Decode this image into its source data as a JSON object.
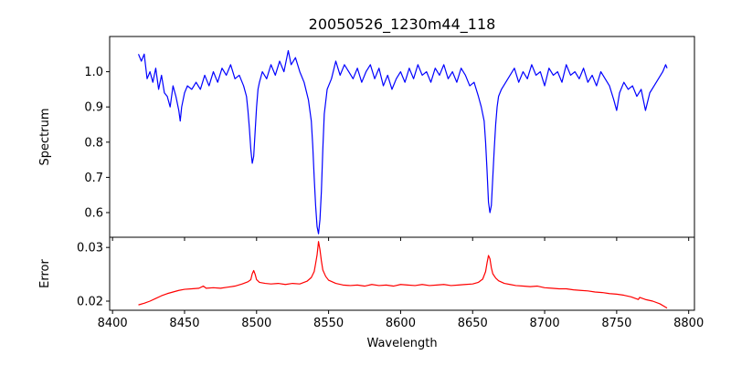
{
  "chart_data": [
    {
      "type": "line",
      "title": "20050526_1230m44_118",
      "xlabel": "",
      "ylabel": "Spectrum",
      "xlim": [
        8398,
        8804
      ],
      "ylim": [
        0.53,
        1.1
      ],
      "xticks": [
        8400,
        8450,
        8500,
        8550,
        8600,
        8650,
        8700,
        8750,
        8800
      ],
      "xtick_labels_visible": false,
      "yticks": [
        0.6,
        0.7,
        0.8,
        0.9,
        1.0
      ],
      "ytick_labels": [
        "0.6",
        "0.7",
        "0.8",
        "0.9",
        "1.0"
      ],
      "grid": false,
      "color": "#0000ff",
      "series": [
        {
          "x": [
            8418,
            8420,
            8422,
            8424,
            8426,
            8428,
            8430,
            8432,
            8434,
            8436,
            8438,
            8440,
            8442,
            8444,
            8446,
            8447,
            8448,
            8450,
            8452,
            8455,
            8458,
            8461,
            8464,
            8467,
            8470,
            8473,
            8476,
            8479,
            8482,
            8485,
            8488,
            8491,
            8493,
            8494,
            8495,
            8496,
            8497,
            8498,
            8499,
            8500,
            8501,
            8502,
            8504,
            8507,
            8510,
            8513,
            8516,
            8519,
            8522,
            8524,
            8527,
            8530,
            8533,
            8536,
            8538,
            8539,
            8540,
            8541,
            8542,
            8543,
            8544,
            8545,
            8546,
            8547,
            8549,
            8552,
            8555,
            8558,
            8561,
            8564,
            8567,
            8570,
            8573,
            8576,
            8579,
            8582,
            8585,
            8588,
            8591,
            8594,
            8597,
            8600,
            8603,
            8606,
            8609,
            8612,
            8615,
            8618,
            8621,
            8624,
            8627,
            8630,
            8633,
            8636,
            8639,
            8642,
            8645,
            8648,
            8651,
            8654,
            8656,
            8658,
            8659,
            8660,
            8661,
            8662,
            8663,
            8664,
            8665,
            8666,
            8667,
            8668,
            8670,
            8673,
            8676,
            8679,
            8682,
            8685,
            8688,
            8691,
            8694,
            8697,
            8700,
            8703,
            8706,
            8709,
            8712,
            8715,
            8718,
            8721,
            8724,
            8727,
            8730,
            8733,
            8736,
            8739,
            8742,
            8745,
            8748,
            8750,
            8752,
            8755,
            8758,
            8761,
            8764,
            8767,
            8770,
            8773,
            8776,
            8779,
            8782,
            8784,
            8785
          ],
          "y": [
            1.05,
            1.03,
            1.05,
            0.98,
            1.0,
            0.97,
            1.01,
            0.95,
            0.99,
            0.94,
            0.93,
            0.9,
            0.96,
            0.93,
            0.89,
            0.86,
            0.9,
            0.94,
            0.96,
            0.95,
            0.97,
            0.95,
            0.99,
            0.96,
            1.0,
            0.97,
            1.01,
            0.99,
            1.02,
            0.98,
            0.99,
            0.96,
            0.93,
            0.89,
            0.84,
            0.78,
            0.74,
            0.76,
            0.83,
            0.9,
            0.95,
            0.97,
            1.0,
            0.98,
            1.02,
            0.99,
            1.03,
            1.0,
            1.06,
            1.02,
            1.04,
            1.0,
            0.97,
            0.92,
            0.86,
            0.79,
            0.7,
            0.62,
            0.56,
            0.54,
            0.58,
            0.66,
            0.78,
            0.88,
            0.95,
            0.98,
            1.03,
            0.99,
            1.02,
            1.0,
            0.98,
            1.01,
            0.97,
            1.0,
            1.02,
            0.98,
            1.01,
            0.96,
            0.99,
            0.95,
            0.98,
            1.0,
            0.97,
            1.01,
            0.98,
            1.02,
            0.99,
            1.0,
            0.97,
            1.01,
            0.99,
            1.02,
            0.98,
            1.0,
            0.97,
            1.01,
            0.99,
            0.96,
            0.97,
            0.93,
            0.9,
            0.86,
            0.8,
            0.72,
            0.63,
            0.6,
            0.62,
            0.7,
            0.78,
            0.85,
            0.9,
            0.93,
            0.95,
            0.97,
            0.99,
            1.01,
            0.97,
            1.0,
            0.98,
            1.02,
            0.99,
            1.0,
            0.96,
            1.01,
            0.99,
            1.0,
            0.97,
            1.02,
            0.99,
            1.0,
            0.98,
            1.01,
            0.97,
            0.99,
            0.96,
            1.0,
            0.98,
            0.96,
            0.92,
            0.89,
            0.94,
            0.97,
            0.95,
            0.96,
            0.93,
            0.95,
            0.89,
            0.94,
            0.96,
            0.98,
            1.0,
            1.02,
            1.01
          ]
        }
      ]
    },
    {
      "type": "line",
      "title": "",
      "xlabel": "Wavelength",
      "ylabel": "Error",
      "xlim": [
        8398,
        8804
      ],
      "ylim": [
        0.0183,
        0.0319
      ],
      "xticks": [
        8400,
        8450,
        8500,
        8550,
        8600,
        8650,
        8700,
        8750,
        8800
      ],
      "xtick_labels": [
        "8400",
        "8450",
        "8500",
        "8550",
        "8600",
        "8650",
        "8700",
        "8750",
        "8800"
      ],
      "yticks": [
        0.02,
        0.03
      ],
      "ytick_labels": [
        "0.02",
        "0.03"
      ],
      "grid": false,
      "color": "#ff0000",
      "series": [
        {
          "x": [
            8418,
            8422,
            8426,
            8430,
            8434,
            8438,
            8442,
            8446,
            8450,
            8455,
            8460,
            8463,
            8465,
            8470,
            8475,
            8480,
            8485,
            8490,
            8494,
            8496,
            8497,
            8498,
            8499,
            8500,
            8502,
            8506,
            8510,
            8515,
            8520,
            8525,
            8530,
            8535,
            8538,
            8540,
            8541,
            8542,
            8543,
            8544,
            8545,
            8546,
            8548,
            8550,
            8555,
            8560,
            8565,
            8570,
            8575,
            8580,
            8585,
            8590,
            8595,
            8600,
            8605,
            8610,
            8615,
            8620,
            8625,
            8630,
            8635,
            8640,
            8645,
            8650,
            8654,
            8657,
            8659,
            8660,
            8661,
            8662,
            8663,
            8664,
            8666,
            8668,
            8672,
            8676,
            8680,
            8685,
            8690,
            8695,
            8700,
            8705,
            8710,
            8715,
            8720,
            8725,
            8730,
            8735,
            8740,
            8745,
            8750,
            8755,
            8760,
            8765,
            8766,
            8770,
            8775,
            8780,
            8785
          ],
          "y": [
            0.0193,
            0.0196,
            0.02,
            0.0205,
            0.021,
            0.0214,
            0.0217,
            0.022,
            0.0222,
            0.0223,
            0.0224,
            0.0228,
            0.0224,
            0.0225,
            0.0224,
            0.0226,
            0.0228,
            0.0232,
            0.0236,
            0.024,
            0.0251,
            0.0257,
            0.025,
            0.024,
            0.0235,
            0.0233,
            0.0232,
            0.0233,
            0.0231,
            0.0233,
            0.0232,
            0.0237,
            0.0244,
            0.0255,
            0.027,
            0.0286,
            0.0311,
            0.0296,
            0.0275,
            0.0258,
            0.0246,
            0.0239,
            0.0233,
            0.023,
            0.0229,
            0.023,
            0.0228,
            0.0231,
            0.0229,
            0.023,
            0.0228,
            0.0231,
            0.023,
            0.0229,
            0.0231,
            0.0229,
            0.023,
            0.0231,
            0.0229,
            0.023,
            0.0231,
            0.0232,
            0.0235,
            0.0241,
            0.0255,
            0.0271,
            0.0285,
            0.0279,
            0.0262,
            0.0251,
            0.0243,
            0.0238,
            0.0233,
            0.0231,
            0.0229,
            0.0228,
            0.0227,
            0.0228,
            0.0225,
            0.0224,
            0.0223,
            0.0223,
            0.0221,
            0.022,
            0.0219,
            0.0217,
            0.0216,
            0.0214,
            0.0213,
            0.0211,
            0.0208,
            0.0203,
            0.0207,
            0.0203,
            0.02,
            0.0195,
            0.0187
          ]
        }
      ]
    }
  ]
}
